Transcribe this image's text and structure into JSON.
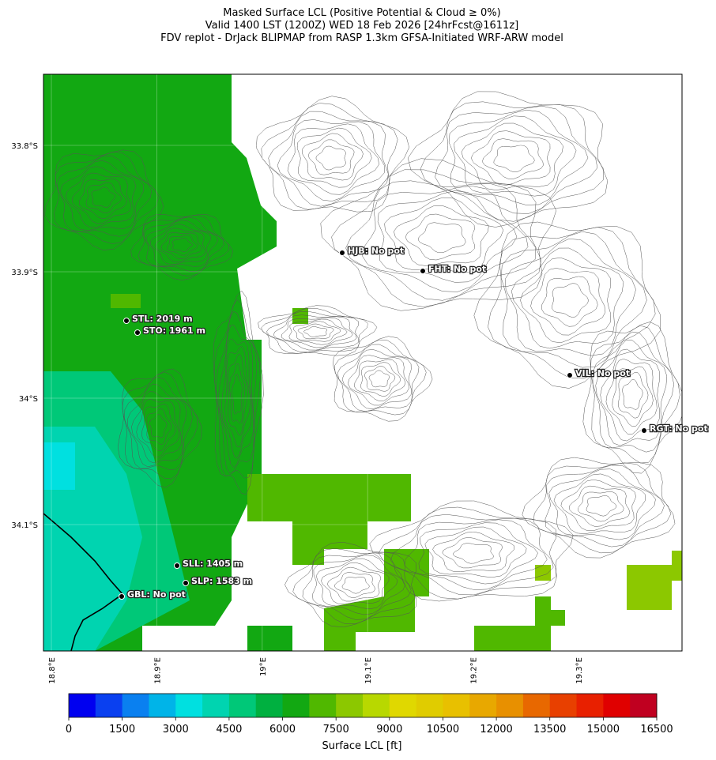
{
  "title_lines": [
    "Masked Surface LCL (Positive Potential & Cloud ≥ 0%)",
    "Valid 1400 LST (1200Z) WED 18 Feb 2026 [24hrFcst@1611z]",
    "FDV replot - DrJack BLIPMAP from RASP 1.3km GFSA-Initiated WRF-ARW model"
  ],
  "map": {
    "lat_ticks": [
      {
        "value": -33.8,
        "label": "33.8°S"
      },
      {
        "value": -33.9,
        "label": "33.9°S"
      },
      {
        "value": -34.0,
        "label": "34°S"
      },
      {
        "value": -34.1,
        "label": "34.1°S"
      }
    ],
    "lon_ticks": [
      {
        "value": 18.8,
        "label": "18.8°E"
      },
      {
        "value": 18.9,
        "label": "18.9°E"
      },
      {
        "value": 19.0,
        "label": "19°E"
      },
      {
        "value": 19.1,
        "label": "19.1°E"
      },
      {
        "value": 19.2,
        "label": "19.2°E"
      },
      {
        "value": 19.3,
        "label": "19.3°E"
      }
    ],
    "stations": [
      {
        "label": "HJB: No pot"
      },
      {
        "label": "FHT: No pot"
      },
      {
        "label": "STL: 2019 m"
      },
      {
        "label": "STO: 1961 m"
      },
      {
        "label": "VIL: No pot"
      },
      {
        "label": "RGT: No pot"
      },
      {
        "label": "SLL: 1405 m"
      },
      {
        "label": "SLP: 1583 m"
      },
      {
        "label": "GBL: No pot"
      }
    ]
  },
  "colorbar": {
    "colors": [
      "#0000f0",
      "#0a40f0",
      "#0a80f0",
      "#00b4e8",
      "#00e0e0",
      "#00d4b0",
      "#00c878",
      "#00b040",
      "#12a812",
      "#50b800",
      "#8cc800",
      "#b8d800",
      "#e0d800",
      "#e0cc00",
      "#e8c000",
      "#e8a800",
      "#e89000",
      "#e86800",
      "#e84000",
      "#e82000",
      "#e00000",
      "#c00020"
    ],
    "lim": [
      0,
      16500
    ],
    "ticks": [
      0,
      1500,
      3000,
      4500,
      6000,
      7500,
      9000,
      10500,
      12000,
      13500,
      15000,
      16500
    ],
    "label": "Surface LCL [ft]"
  }
}
